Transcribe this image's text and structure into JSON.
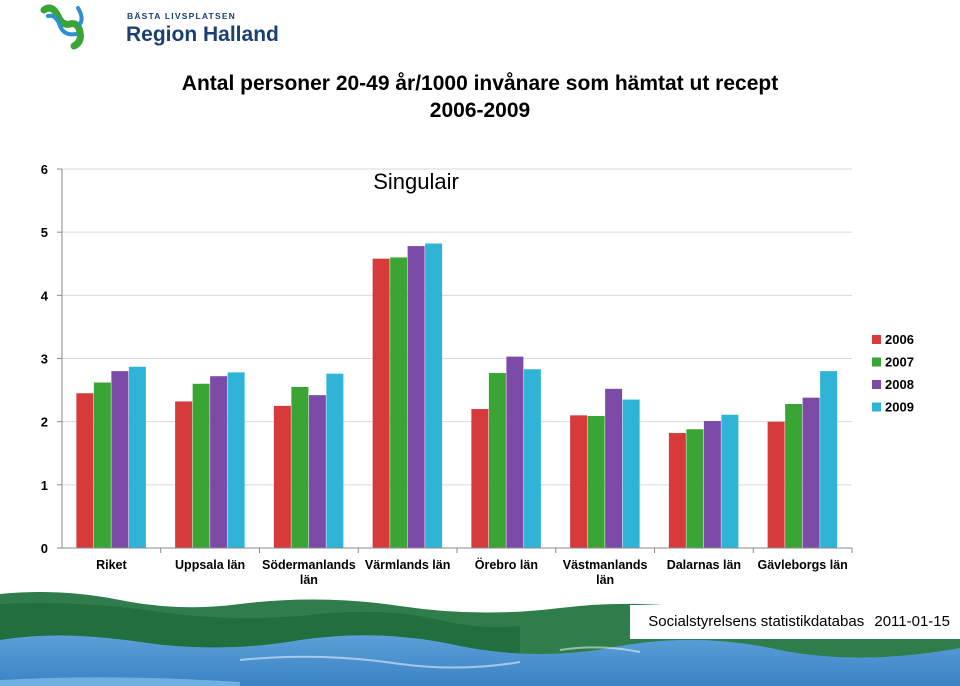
{
  "logo": {
    "tagline": "BÄSTA LIVSPLATSEN",
    "name": "Region Halland"
  },
  "title_line1": "Antal personer 20-49 år/1000 invånare som hämtat ut recept",
  "title_line2": "2006-2009",
  "footer": {
    "source": "Socialstyrelsens statistikdatabas",
    "date": "2011-01-15"
  },
  "colors": {
    "2006": "#d63a3a",
    "2007": "#3aa535",
    "2008": "#7c4ba8",
    "2009": "#2fb4d8"
  },
  "chart_data": {
    "type": "bar",
    "title": "Singulair",
    "xlabel": "",
    "ylabel": "",
    "ylim": [
      0,
      6
    ],
    "yticks": [
      0,
      1,
      2,
      3,
      4,
      5,
      6
    ],
    "grid": true,
    "legend_position": "right",
    "categories": [
      [
        "Riket"
      ],
      [
        "Uppsala län"
      ],
      [
        "Södermanlands",
        "län"
      ],
      [
        "Värmlands län"
      ],
      [
        "Örebro län"
      ],
      [
        "Västmanlands",
        "län"
      ],
      [
        "Dalarnas län"
      ],
      [
        "Gävleborgs län"
      ]
    ],
    "series": [
      {
        "name": "2006",
        "values": [
          2.45,
          2.32,
          2.25,
          4.58,
          2.2,
          2.1,
          1.82,
          2.0
        ]
      },
      {
        "name": "2007",
        "values": [
          2.62,
          2.6,
          2.55,
          4.6,
          2.77,
          2.09,
          1.88,
          2.28
        ]
      },
      {
        "name": "2008",
        "values": [
          2.8,
          2.72,
          2.42,
          4.78,
          3.03,
          2.52,
          2.01,
          2.38
        ]
      },
      {
        "name": "2009",
        "values": [
          2.87,
          2.78,
          2.76,
          4.82,
          2.83,
          2.35,
          2.11,
          2.8
        ]
      }
    ]
  }
}
